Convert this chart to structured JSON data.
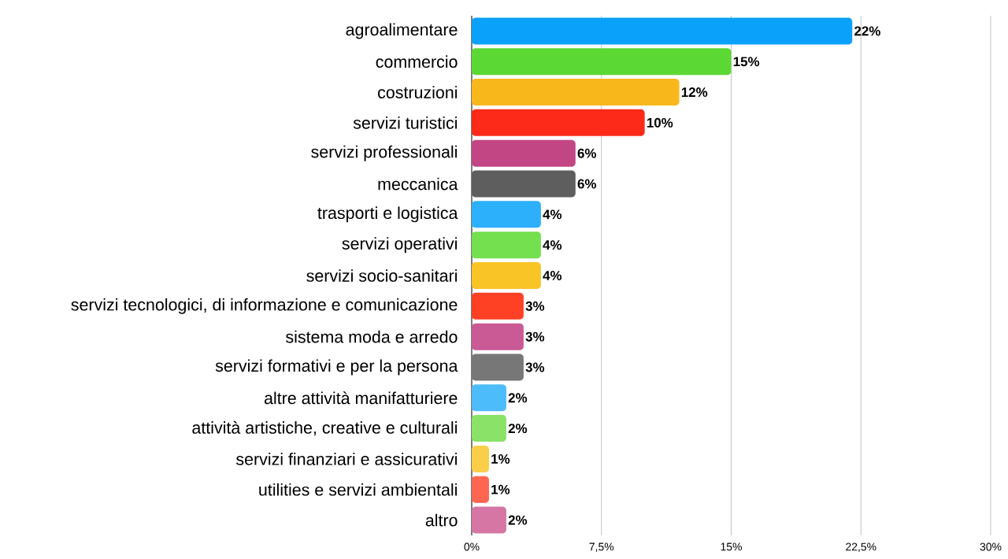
{
  "chart_data": {
    "type": "bar",
    "orientation": "horizontal",
    "categories": [
      "agroalimentare",
      "commercio",
      "costruzioni",
      "servizi turistici",
      "servizi professionali",
      "meccanica",
      "trasporti e logistica",
      "servizi operativi",
      "servizi socio-sanitari",
      "servizi tecnologici, di informazione e comunicazione",
      "sistema moda e arredo",
      "servizi formativi e per la persona",
      "altre attività manifatturiere",
      "attività artistiche, creative e culturali",
      "servizi finanziari e assicurativi",
      "utilities e servizi ambientali",
      "altro"
    ],
    "values": [
      22,
      15,
      12,
      10,
      6,
      6,
      4,
      4,
      4,
      3,
      3,
      3,
      2,
      2,
      1,
      1,
      2
    ],
    "value_labels": [
      "22%",
      "15%",
      "12%",
      "10%",
      "6%",
      "6%",
      "4%",
      "4%",
      "4%",
      "3%",
      "3%",
      "3%",
      "2%",
      "2%",
      "1%",
      "1%",
      "2%"
    ],
    "colors": [
      "#0aa1fb",
      "#5cd834",
      "#f8b81c",
      "#fd2a19",
      "#c34684",
      "#5e5e5e",
      "#2cb0fb",
      "#74df4f",
      "#f9c425",
      "#fe4125",
      "#c95a95",
      "#777777",
      "#4dbcfb",
      "#8ae268",
      "#fbce4a",
      "#fe6651",
      "#d576a5"
    ],
    "xlim": [
      0,
      30
    ],
    "xticks": [
      {
        "value": 0,
        "label": "0%"
      },
      {
        "value": 7.5,
        "label": "7,5%"
      },
      {
        "value": 15,
        "label": "15%"
      },
      {
        "value": 22.5,
        "label": "22,5%"
      },
      {
        "value": 30,
        "label": "30%"
      }
    ],
    "grid": "x"
  }
}
